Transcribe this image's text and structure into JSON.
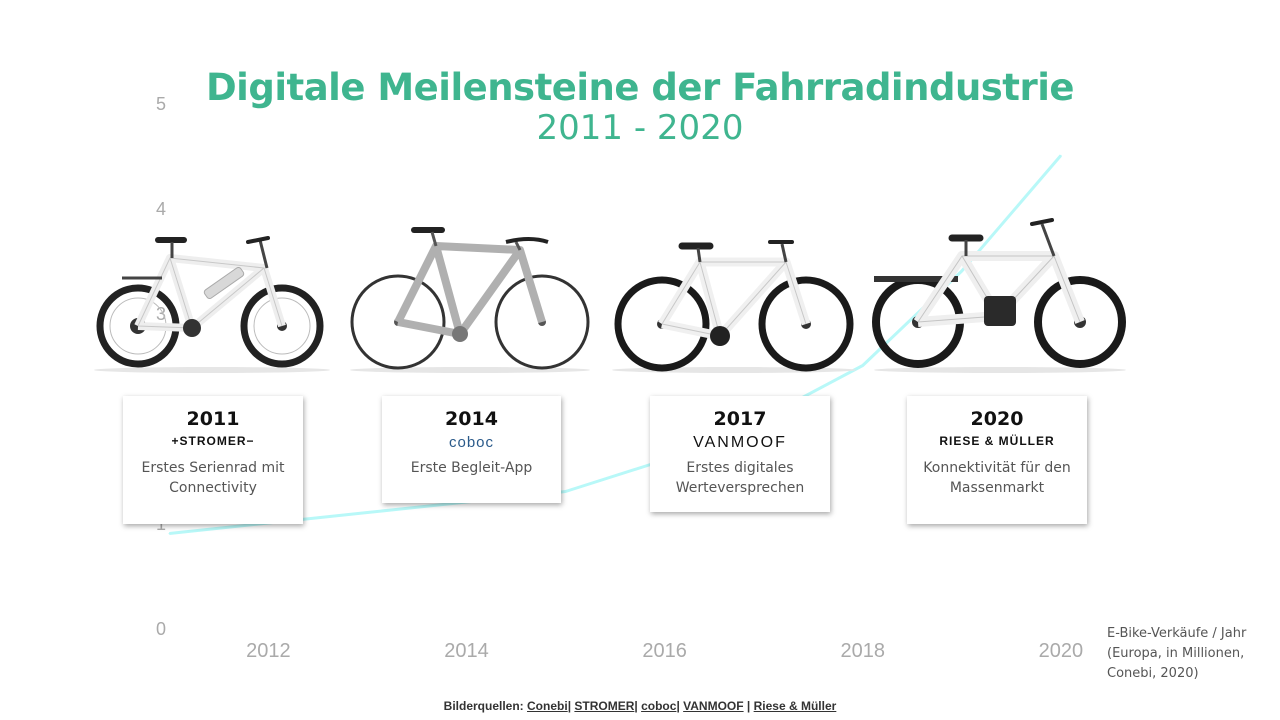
{
  "title": "Digitale Meilensteine der Fahrradindustrie",
  "subtitle": "2011 - 2020",
  "chart_data": {
    "type": "line",
    "x": [
      2011,
      2012,
      2013,
      2014,
      2015,
      2016,
      2017,
      2018,
      2019,
      2020
    ],
    "series": [
      {
        "values": [
          0.9,
          1.0,
          1.1,
          1.2,
          1.3,
          1.6,
          2.0,
          2.5,
          3.4,
          4.5
        ]
      }
    ],
    "x_ticks": [
      "2012",
      "2014",
      "2016",
      "2018",
      "2020"
    ],
    "y_ticks": [
      "0",
      "1",
      "2",
      "3",
      "4",
      "5"
    ],
    "ylim": [
      0,
      5
    ],
    "xlim": [
      2010.3,
      2020.9
    ],
    "grid": false,
    "line_color": "#b8f8f8",
    "axis_label": "E-Bike-Verkäufe / Jahr (Europa, in Millionen, Conebi, 2020)"
  },
  "milestones": [
    {
      "year": "2011",
      "brand": "+STROMER−",
      "text": "Erstes Serienrad mit Connectivity",
      "bike_color": "#f2f2f2"
    },
    {
      "year": "2014",
      "brand": "coboc",
      "text": "Erste Begleit-App",
      "bike_color": "#b0b0b0"
    },
    {
      "year": "2017",
      "brand": "VANMOOF",
      "text": "Erstes digitales Werteversprechen",
      "bike_color": "#f2f2f2"
    },
    {
      "year": "2020",
      "brand": "RIESE & MÜLLER",
      "text": "Konnektivität für den Massenmarkt",
      "bike_color": "#f2f2f2"
    }
  ],
  "sources": {
    "prefix": "Bilderquellen: ",
    "links": [
      "Conebi",
      "STROMER",
      "coboc",
      "VANMOOF",
      "Riese & Müller"
    ]
  },
  "colors": {
    "accent": "#3fb58f",
    "line": "#b8f8f8"
  }
}
